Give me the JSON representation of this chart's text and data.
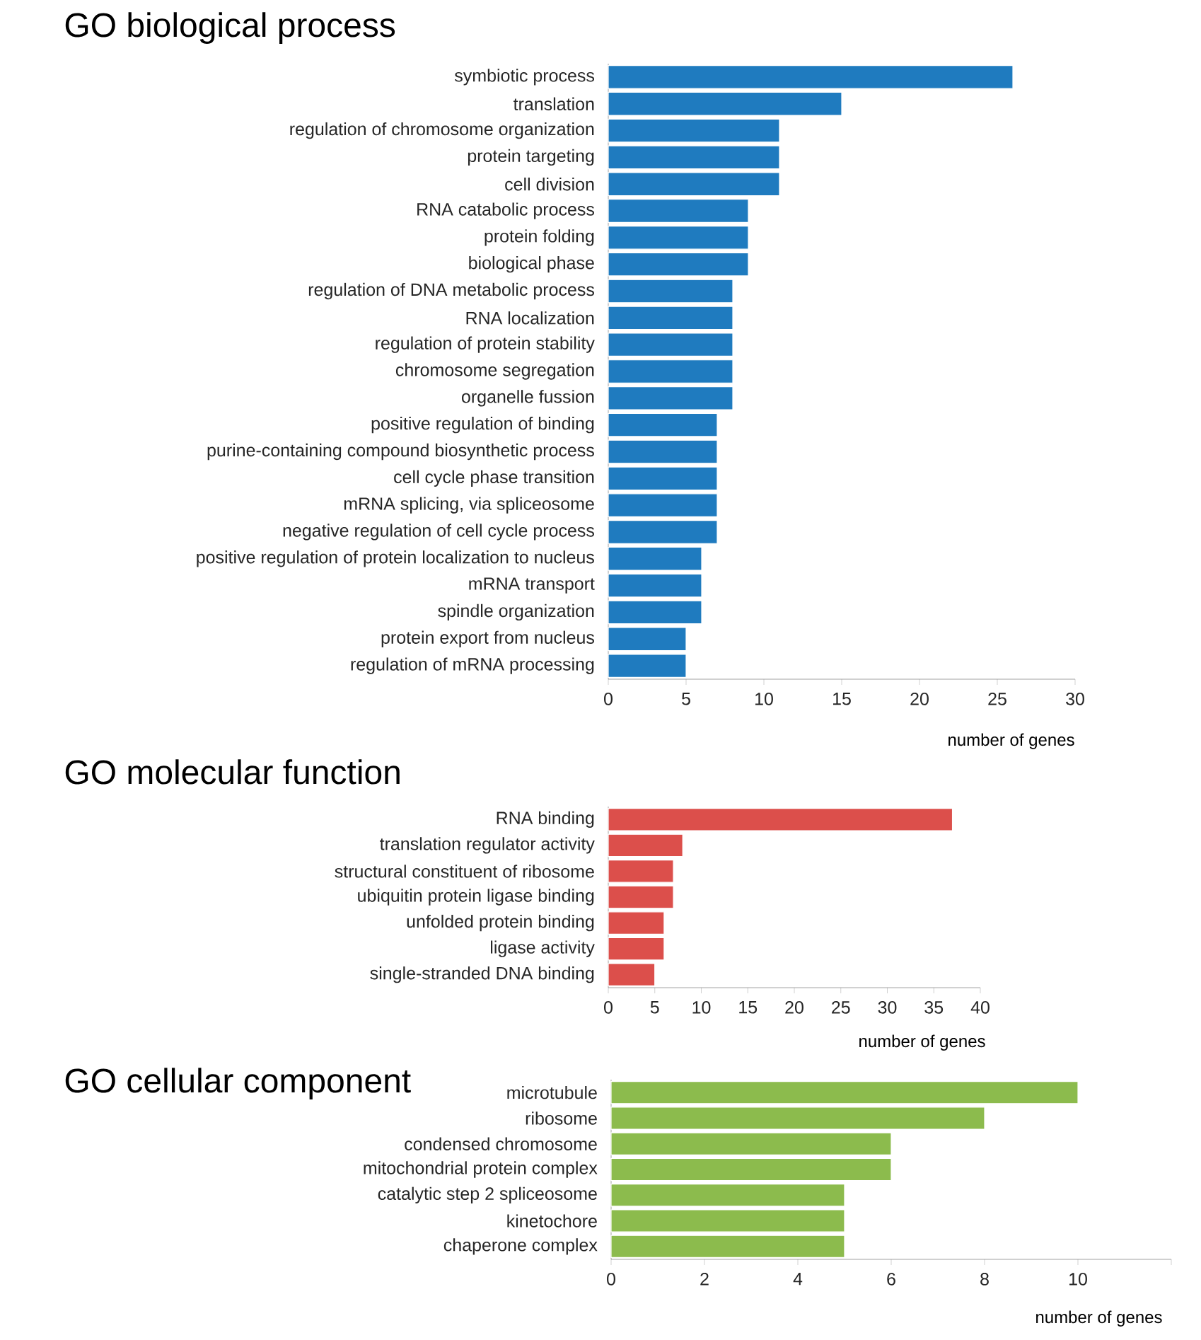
{
  "chart_data": [
    {
      "type": "bar",
      "orientation": "horizontal",
      "title": "GO biological process",
      "xlabel": "number of genes",
      "color": "#1f7bbf",
      "categories": [
        "symbiotic process",
        "translation",
        "regulation of chromosome organization",
        "protein targeting",
        "cell division",
        "RNA catabolic process",
        "protein folding",
        "biological phase",
        "regulation of DNA metabolic process",
        "RNA localization",
        "regulation of protein stability",
        "chromosome segregation",
        "organelle fussion",
        "positive regulation of binding",
        "purine-containing compound biosynthetic process",
        "cell cycle phase transition",
        "mRNA splicing, via spliceosome",
        "negative regulation of cell cycle process",
        "positive regulation of protein localization to nucleus",
        "mRNA transport",
        "spindle organization",
        "protein export from nucleus",
        "regulation of mRNA processing"
      ],
      "values": [
        26,
        15,
        11,
        11,
        11,
        9,
        9,
        9,
        8,
        8,
        8,
        8,
        8,
        7,
        7,
        7,
        7,
        7,
        6,
        6,
        6,
        5,
        5
      ],
      "xlim": [
        0,
        30
      ],
      "xticks": [
        0,
        5,
        10,
        15,
        20,
        25,
        30
      ]
    },
    {
      "type": "bar",
      "orientation": "horizontal",
      "title": "GO molecular function",
      "xlabel": "number of genes",
      "color": "#dc4f4b",
      "categories": [
        "RNA binding",
        "translation regulator activity",
        "structural constituent of ribosome",
        "ubiquitin protein ligase binding",
        "unfolded protein binding",
        "ligase activity",
        "single-stranded DNA binding"
      ],
      "values": [
        37,
        8,
        7,
        7,
        6,
        6,
        5
      ],
      "xlim": [
        0,
        40
      ],
      "xticks": [
        0,
        5,
        10,
        15,
        20,
        25,
        30,
        35,
        40
      ]
    },
    {
      "type": "bar",
      "orientation": "horizontal",
      "title": "GO cellular component",
      "xlabel": "number of genes",
      "color": "#8cbb4d",
      "categories": [
        "microtubule",
        "ribosome",
        "condensed chromosome",
        "mitochondrial protein complex",
        "catalytic step 2 spliceosome",
        "kinetochore",
        "chaperone complex"
      ],
      "values": [
        10,
        8,
        6,
        6,
        5,
        5,
        5
      ],
      "xlim": [
        0,
        12
      ],
      "xticks": [
        0,
        2,
        4,
        6,
        8,
        10,
        {
          "value": 12,
          "label": null
        }
      ]
    }
  ]
}
